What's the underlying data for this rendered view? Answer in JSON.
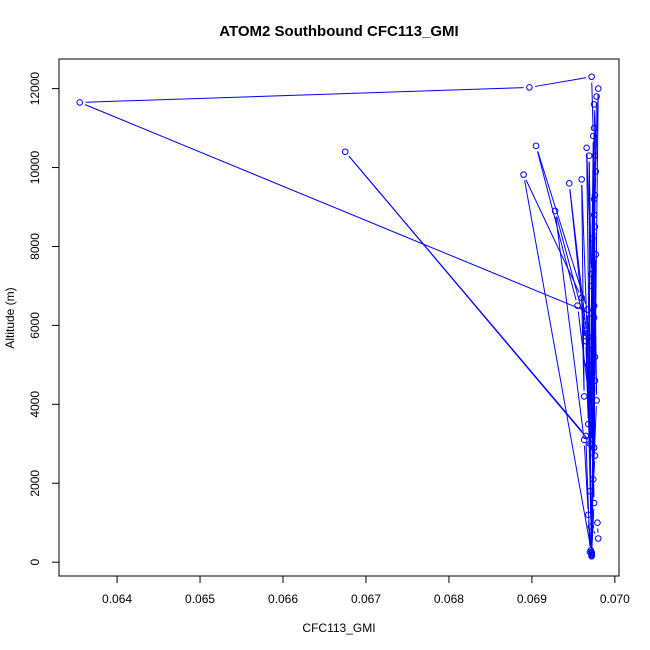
{
  "chart_data": {
    "type": "line",
    "title": "ATOM2 Southbound CFC113_GMI",
    "xlabel": "CFC113_GMI",
    "ylabel": "Altitude (m)",
    "xlim": [
      0.0633,
      0.07005
    ],
    "ylim": [
      -350,
      12750
    ],
    "xticks": [
      0.064,
      0.065,
      0.066,
      0.067,
      0.068,
      0.069,
      0.07
    ],
    "xtick_labels": [
      "0.064",
      "0.065",
      "0.066",
      "0.067",
      "0.068",
      "0.069",
      "0.070"
    ],
    "yticks": [
      0,
      2000,
      4000,
      6000,
      8000,
      10000,
      12000
    ],
    "ytick_labels": [
      "0",
      "2000",
      "4000",
      "6000",
      "8000",
      "10000",
      "12000"
    ],
    "grid": false,
    "series": [
      {
        "color": "#0000ff",
        "marker": "open-circle",
        "points": [
          [
            0.06972,
            200
          ],
          [
            0.06975,
            1500
          ],
          [
            0.06973,
            3300
          ],
          [
            0.06976,
            5200
          ],
          [
            0.06974,
            7600
          ],
          [
            0.06977,
            9900
          ],
          [
            0.06975,
            11600
          ],
          [
            0.06978,
            11800
          ],
          [
            0.06976,
            10300
          ],
          [
            0.06973,
            8200
          ],
          [
            0.06975,
            6200
          ],
          [
            0.06972,
            4200
          ],
          [
            0.06974,
            2100
          ],
          [
            0.06971,
            300
          ],
          [
            0.06968,
            1200
          ],
          [
            0.06963,
            3100
          ],
          [
            0.06928,
            8900
          ],
          [
            0.06965,
            6000
          ],
          [
            0.06968,
            3500
          ],
          [
            0.06965,
            5600
          ],
          [
            0.06945,
            9600
          ],
          [
            0.06966,
            5800
          ],
          [
            0.06972,
            250
          ],
          [
            0.06966,
            10500
          ],
          [
            0.06972,
            7000
          ],
          [
            0.0697,
            3000
          ],
          [
            0.06969,
            10300
          ],
          [
            0.06973,
            5400
          ],
          [
            0.0697,
            1800
          ],
          [
            0.06976,
            8500
          ],
          [
            0.06972,
            4700
          ],
          [
            0.06976,
            9300
          ],
          [
            0.06973,
            5700
          ],
          [
            0.06975,
            2900
          ],
          [
            0.06977,
            7800
          ],
          [
            0.06972,
            180
          ],
          [
            0.06975,
            6500
          ],
          [
            0.06975,
            11000
          ],
          [
            0.06971,
            3800
          ],
          [
            0.06955,
            6500
          ],
          [
            0.06905,
            10550
          ],
          [
            0.06967,
            6400
          ],
          [
            0.06972,
            230
          ],
          [
            0.0689,
            9820
          ],
          [
            0.0696,
            6700
          ],
          [
            0.06963,
            4200
          ],
          [
            0.0696,
            9700
          ],
          [
            0.06968,
            5000
          ],
          [
            0.06972,
            150
          ],
          [
            0.06976,
            4600
          ],
          [
            0.0698,
            12000
          ],
          [
            0.06975,
            8800
          ],
          [
            0.06972,
            3000
          ],
          [
            0.06675,
            10400
          ],
          [
            0.06965,
            3200
          ],
          [
            0.0697,
            260
          ],
          [
            0.06978,
            4100
          ],
          [
            0.06975,
            9200
          ],
          [
            0.06972,
            6300
          ],
          [
            0.06355,
            11650
          ],
          [
            0.06897,
            12030
          ],
          [
            0.06972,
            12300
          ],
          [
            0.06974,
            10800
          ],
          [
            0.06972,
            7300
          ],
          [
            0.06976,
            2700
          ],
          [
            0.06971,
            900
          ],
          [
            0.0698,
            600
          ],
          [
            0.06979,
            1000
          ]
        ]
      }
    ]
  }
}
